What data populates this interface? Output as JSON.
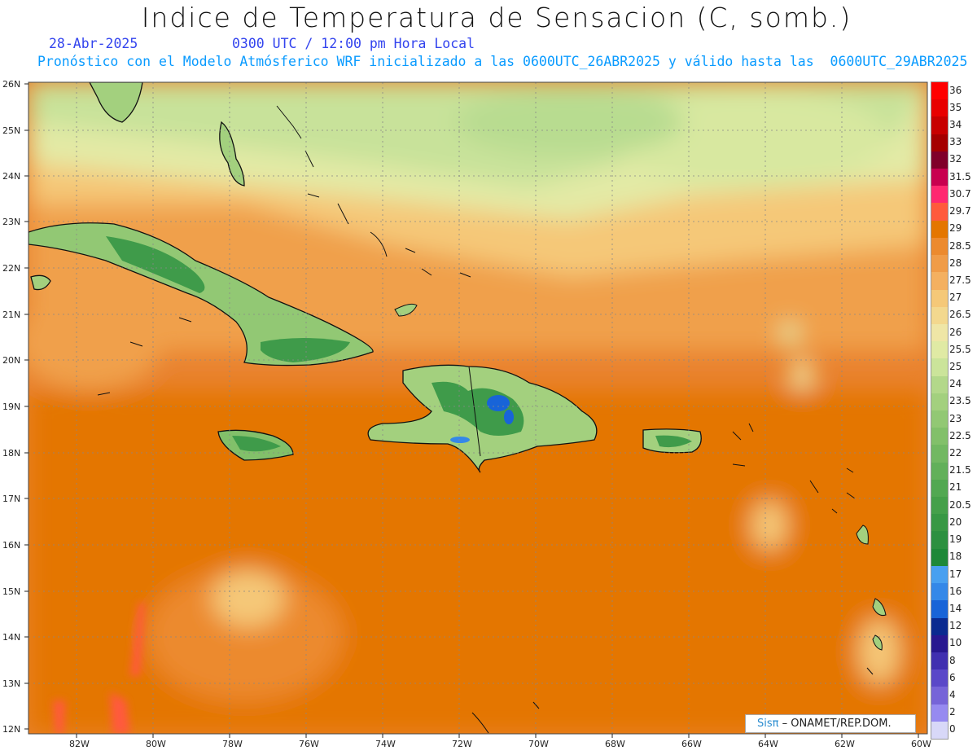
{
  "header": {
    "title": "Indice de Temperatura de Sensacion (C, somb.)",
    "date": "28-Abr-2025",
    "time": "0300 UTC / 12:00 pm Hora Local",
    "description": "Pronóstico con el Modelo Atmósferico WRF inicializado a las 0600UTC_26ABR2025 y válido hasta las  0600UTC_29ABR2025"
  },
  "map": {
    "lat_labels": [
      "26N",
      "25N",
      "24N",
      "23N",
      "22N",
      "21N",
      "20N",
      "19N",
      "18N",
      "17N",
      "16N",
      "15N",
      "14N",
      "13N",
      "12N"
    ],
    "lon_labels": [
      "82W",
      "80W",
      "78W",
      "76W",
      "74W",
      "72W",
      "70W",
      "68W",
      "66W",
      "64W",
      "62W",
      "60W"
    ],
    "lat_range": [
      12,
      26
    ],
    "lon_range": [
      -83.2,
      -60
    ]
  },
  "colorbar": {
    "labels": [
      "36",
      "35",
      "34",
      "33",
      "32",
      "31.5",
      "30.7",
      "29.7",
      "29",
      "28.5",
      "28",
      "27.5",
      "27",
      "26.5",
      "26",
      "25.5",
      "25",
      "24",
      "23.5",
      "23",
      "22.5",
      "22",
      "21.5",
      "21",
      "20.5",
      "20",
      "19",
      "18",
      "17",
      "16",
      "14",
      "12",
      "10",
      "8",
      "6",
      "4",
      "2",
      "0"
    ],
    "colors": [
      "#ff0000",
      "#e80000",
      "#c80000",
      "#a50000",
      "#80002a",
      "#c8004f",
      "#ff2870",
      "#ff5a3c",
      "#e47600",
      "#ec8a2e",
      "#f09c48",
      "#f4b060",
      "#f5c878",
      "#f3d88e",
      "#efe6a6",
      "#e0eaa4",
      "#cbe49a",
      "#b3d88a",
      "#a3d07e",
      "#92c874",
      "#82c06a",
      "#72b862",
      "#62b05a",
      "#52a852",
      "#45a04a",
      "#389844",
      "#2c9040",
      "#1e8838",
      "#48a0f0",
      "#3488e8",
      "#1864d8",
      "#0a2a90",
      "#281890",
      "#4030b0",
      "#5a48c8",
      "#7664d8",
      "#968af0",
      "#d8d8f8"
    ]
  },
  "credit": {
    "brand": "Sisπ",
    "text": " – ONAMET/REP.DOM."
  },
  "colors": {
    "ocean_base": "#e9822e",
    "deep_orange": "#e47600",
    "yellow": "#f3d88e",
    "green_land": "#3f9b4a"
  }
}
